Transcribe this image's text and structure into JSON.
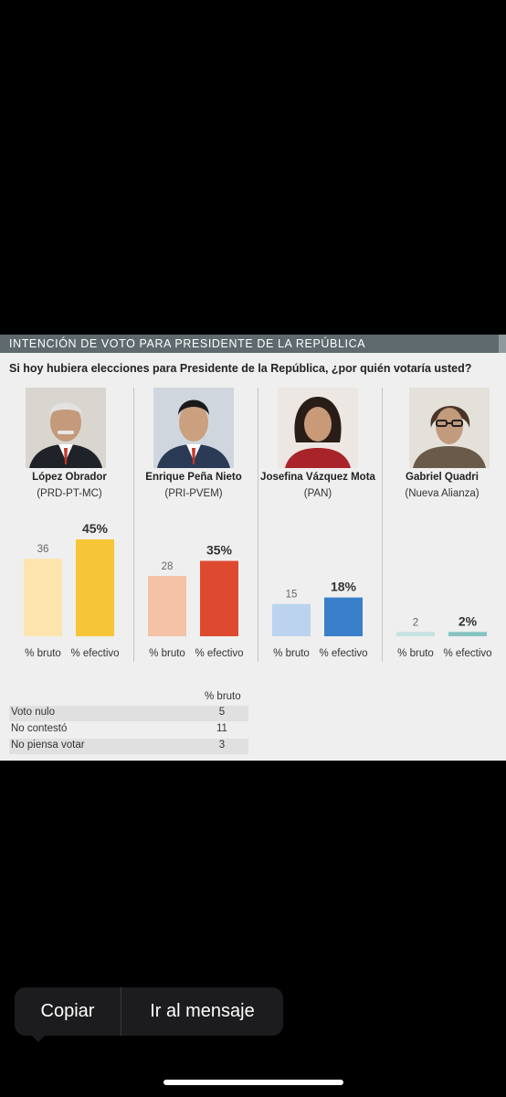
{
  "header": {
    "title": "INTENCIÓN DE VOTO PARA PRESIDENTE DE LA REPÚBLICA"
  },
  "question": "Si hoy hubiera elecciones para Presidente de la República, ¿por quién votaría usted?",
  "candidates": [
    {
      "name": "López Obrador",
      "party": "(PRD-PT-MC)",
      "bruto_label": "36",
      "efectivo_label": "45%",
      "bruto_color": "#fce5ae",
      "efectivo_color": "#f7c638"
    },
    {
      "name": "Enrique Peña Nieto",
      "party": "(PRI-PVEM)",
      "bruto_label": "28",
      "efectivo_label": "35%",
      "bruto_color": "#f4c2a4",
      "efectivo_color": "#dd4a30"
    },
    {
      "name": "Josefina Vázquez Mota",
      "party": "(PAN)",
      "bruto_label": "15",
      "efectivo_label": "18%",
      "bruto_color": "#bcd3ef",
      "efectivo_color": "#3a7fc9"
    },
    {
      "name": "Gabriel Quadri",
      "party": "(Nueva Alianza)",
      "bruto_label": "2",
      "efectivo_label": "2%",
      "bruto_color": "#c6e3e2",
      "efectivo_color": "#86c4c3"
    }
  ],
  "bar_labels": {
    "bruto": "% bruto",
    "efectivo": "% efectivo"
  },
  "chart_data": {
    "type": "bar",
    "title": "INTENCIÓN DE VOTO PARA PRESIDENTE DE LA REPÚBLICA",
    "subtitle": "Si hoy hubiera elecciones para Presidente de la República, ¿por quién votaría usted?",
    "categories": [
      "López Obrador",
      "Enrique Peña Nieto",
      "Josefina Vázquez Mota",
      "Gabriel Quadri"
    ],
    "series": [
      {
        "name": "% bruto",
        "values": [
          36,
          28,
          15,
          2
        ]
      },
      {
        "name": "% efectivo",
        "values": [
          45,
          35,
          18,
          2
        ]
      }
    ],
    "ylim": [
      0,
      50
    ],
    "grid": false,
    "legend": "none"
  },
  "footer_table": {
    "header": "% bruto",
    "rows": [
      {
        "label": "Voto nulo",
        "value": "5"
      },
      {
        "label": "No contestó",
        "value": "11"
      },
      {
        "label": "No piensa votar",
        "value": "3"
      }
    ]
  },
  "toolbar": {
    "copy_label": "Copiar",
    "goto_label": "Ir al mensaje"
  }
}
